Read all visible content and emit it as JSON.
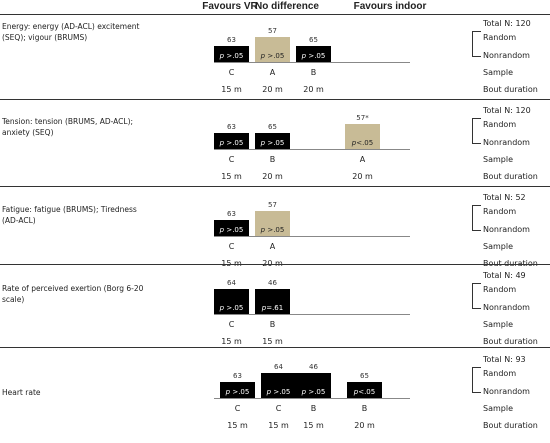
{
  "header": {
    "favours_vr": "Favours VR",
    "no_difference": "No difference",
    "favours_indoor": "Favours indoor"
  },
  "colors": {
    "black_bar": "#000000",
    "tan_bar": "#c8bb96"
  },
  "row_labels": {
    "random": "Random",
    "nonrandom": "Nonrandom",
    "sample": "Sample",
    "bout": "Bout duration"
  },
  "sections": [
    {
      "label": "Energy: energy (AD-ACL) excitement (SEQ); vigour (BRUMS)",
      "total": "Total N: 120",
      "bars": [
        {
          "column": 0,
          "count": "63",
          "p": "p",
          "rest": " >.05",
          "color": "black",
          "height_frac": 0.63,
          "sample": "C",
          "bout": "15 m"
        },
        {
          "column": 1,
          "count": "57",
          "p": "p",
          "rest": " >.05",
          "color": "tan",
          "height_frac": 1.0,
          "sample": "A",
          "bout": "20 m"
        },
        {
          "column": 2,
          "count": "65",
          "p": "p",
          "rest": " >.05",
          "color": "black",
          "height_frac": 0.63,
          "sample": "B",
          "bout": "20 m"
        }
      ]
    },
    {
      "label": "Tension: tension (BRUMS, AD-ACL); anxiety (SEQ)",
      "total": "Total N: 120",
      "bars": [
        {
          "column": 0,
          "count": "63",
          "p": "p",
          "rest": " >.05",
          "color": "black",
          "height_frac": 0.63,
          "sample": "C",
          "bout": "15 m"
        },
        {
          "column": 1,
          "count": "65",
          "p": "p",
          "rest": " >.05",
          "color": "black",
          "height_frac": 0.63,
          "sample": "B",
          "bout": "20 m"
        },
        {
          "column": 4,
          "count": "57*",
          "p": "p",
          "rest": "<.05",
          "color": "tan",
          "height_frac": 1.0,
          "sample": "A",
          "bout": "20 m"
        }
      ]
    },
    {
      "label": "Fatigue: fatigue (BRUMS); Tiredness (AD-ACL)",
      "total": "Total N: 52",
      "bars": [
        {
          "column": 0,
          "count": "63",
          "p": "p",
          "rest": " >.05",
          "color": "black",
          "height_frac": 0.63,
          "sample": "C",
          "bout": "15 m"
        },
        {
          "column": 1,
          "count": "57",
          "p": "p",
          "rest": " >.05",
          "color": "tan",
          "height_frac": 1.0,
          "sample": "A",
          "bout": "20 m"
        }
      ]
    },
    {
      "label": "Rate of perceived exertion (Borg 6-20 scale)",
      "total": "Total N: 49",
      "bars": [
        {
          "column": 0,
          "count": "64",
          "p": "p",
          "rest": " >.05",
          "color": "black",
          "height_frac": 1.0,
          "sample": "C",
          "bout": "15 m"
        },
        {
          "column": 1,
          "count": "46",
          "p": "p",
          "rest": "=.61",
          "color": "black",
          "height_frac": 1.0,
          "sample": "B",
          "bout": "15 m"
        }
      ]
    },
    {
      "label": "Heart rate",
      "total": "Total N: 93",
      "bars": [
        {
          "column": 0,
          "count": "63",
          "p": "p",
          "rest": " >.05",
          "color": "black",
          "height_frac": 0.63,
          "sample": "C",
          "bout": "15 m"
        },
        {
          "column": 1,
          "count": "64",
          "p": "p",
          "rest": " >.05",
          "color": "black",
          "height_frac": 1.0,
          "sample": "C",
          "bout": "15 m"
        },
        {
          "column": 2,
          "count": "46",
          "p": "p",
          "rest": " >.05",
          "color": "black",
          "height_frac": 1.0,
          "sample": "B",
          "bout": "15 m"
        },
        {
          "column": 3,
          "count": "65",
          "p": "p",
          "rest": "<.05",
          "color": "black",
          "height_frac": 0.63,
          "sample": "B",
          "bout": "20 m"
        }
      ]
    }
  ]
}
